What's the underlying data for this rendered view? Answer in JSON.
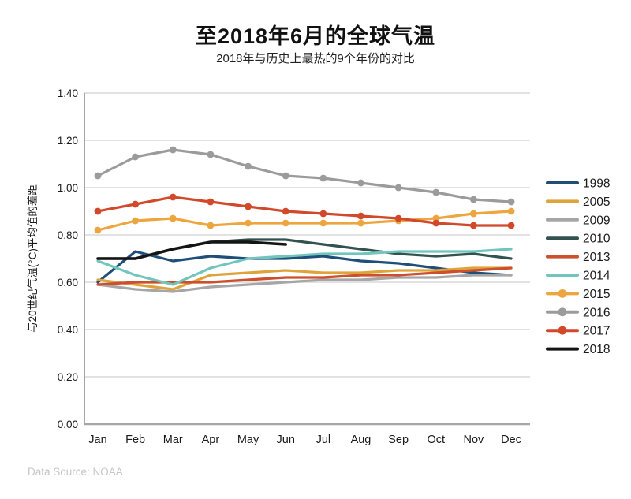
{
  "header": {
    "title": "至2018年6月的全球气温",
    "subtitle": "2018年与历史上最热的9个年份的对比"
  },
  "footer": {
    "source": "Data Source: NOAA"
  },
  "colors": {
    "grid": "#d9d9d9",
    "axis": "#a6a6a6",
    "tick_text": "#1a1a1a",
    "source_text": "#c6c6c6",
    "title_text": "#111111"
  },
  "chart_data": {
    "type": "line",
    "title": "至2018年6月的全球气温",
    "subtitle": "2018年与历史上最热的9个年份的对比",
    "xlabel": "",
    "ylabel": "与20世纪气温(°C)平均值的差距",
    "categories": [
      "Jan",
      "Feb",
      "Mar",
      "Apr",
      "May",
      "Jun",
      "Jul",
      "Aug",
      "Sep",
      "Oct",
      "Nov",
      "Dec"
    ],
    "ylim": [
      0.0,
      1.4
    ],
    "ytick_labels": [
      "0.00",
      "0.20",
      "0.40",
      "0.60",
      "0.80",
      "1.00",
      "1.20",
      "1.40"
    ],
    "yticks": [
      0.0,
      0.2,
      0.4,
      0.6,
      0.8,
      1.0,
      1.2,
      1.4
    ],
    "grid": true,
    "legend_position": "right",
    "series": [
      {
        "name": "1998",
        "color": "#1f4e79",
        "marker": false,
        "values": [
          0.6,
          0.73,
          0.69,
          0.71,
          0.7,
          0.7,
          0.71,
          0.69,
          0.68,
          0.66,
          0.64,
          0.63
        ]
      },
      {
        "name": "2005",
        "color": "#dfa33c",
        "marker": false,
        "values": [
          0.61,
          0.59,
          0.57,
          0.63,
          0.64,
          0.65,
          0.64,
          0.64,
          0.65,
          0.65,
          0.66,
          0.66
        ]
      },
      {
        "name": "2009",
        "color": "#a6a6a6",
        "marker": false,
        "values": [
          0.59,
          0.57,
          0.56,
          0.58,
          0.59,
          0.6,
          0.61,
          0.61,
          0.62,
          0.62,
          0.63,
          0.63
        ]
      },
      {
        "name": "2010",
        "color": "#31524e",
        "marker": false,
        "values": [
          0.7,
          0.7,
          0.74,
          0.77,
          0.78,
          0.78,
          0.76,
          0.74,
          0.72,
          0.71,
          0.72,
          0.7
        ]
      },
      {
        "name": "2013",
        "color": "#cc4f2e",
        "marker": false,
        "values": [
          0.59,
          0.6,
          0.6,
          0.6,
          0.61,
          0.62,
          0.62,
          0.63,
          0.63,
          0.64,
          0.65,
          0.66
        ]
      },
      {
        "name": "2014",
        "color": "#72c5bc",
        "marker": false,
        "values": [
          0.69,
          0.63,
          0.59,
          0.66,
          0.7,
          0.71,
          0.72,
          0.72,
          0.73,
          0.73,
          0.73,
          0.74
        ]
      },
      {
        "name": "2015",
        "color": "#eda63f",
        "marker": true,
        "values": [
          0.82,
          0.86,
          0.87,
          0.84,
          0.85,
          0.85,
          0.85,
          0.85,
          0.86,
          0.87,
          0.89,
          0.9
        ]
      },
      {
        "name": "2016",
        "color": "#9b9b9b",
        "marker": true,
        "values": [
          1.05,
          1.13,
          1.16,
          1.14,
          1.09,
          1.05,
          1.04,
          1.02,
          1.0,
          0.98,
          0.95,
          0.94
        ]
      },
      {
        "name": "2017",
        "color": "#d1492a",
        "marker": true,
        "values": [
          0.9,
          0.93,
          0.96,
          0.94,
          0.92,
          0.9,
          0.89,
          0.88,
          0.87,
          0.85,
          0.84,
          0.84
        ]
      },
      {
        "name": "2018",
        "color": "#141414",
        "marker": false,
        "values": [
          0.7,
          0.7,
          0.74,
          0.77,
          0.77,
          0.76
        ]
      }
    ]
  }
}
